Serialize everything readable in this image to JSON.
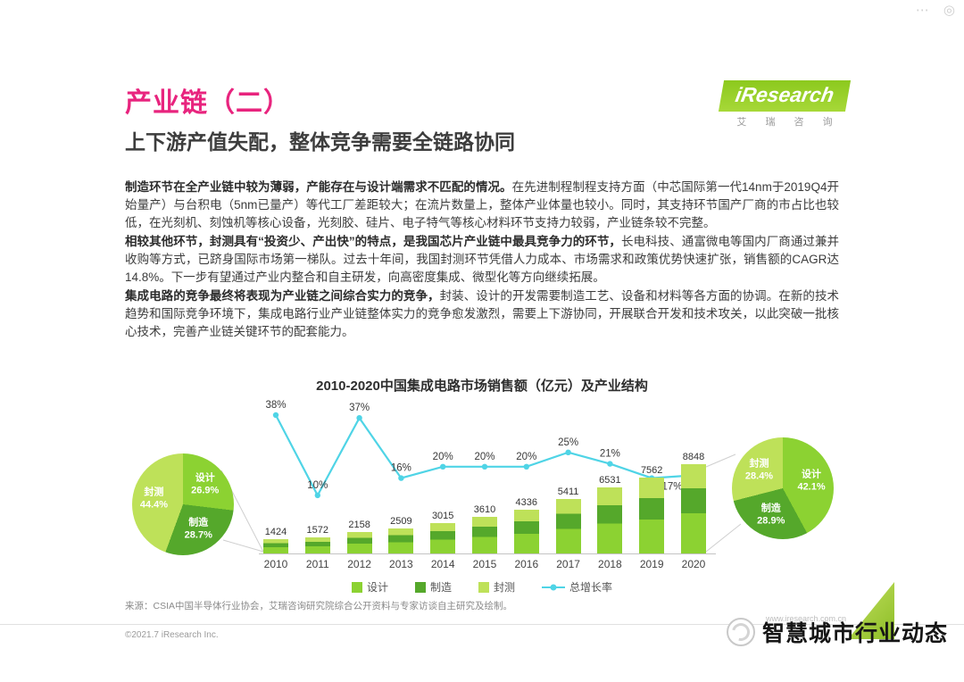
{
  "icons": {
    "more": "⋯",
    "float": "◎"
  },
  "header": {
    "section_title": "产业链（二）",
    "headline": "上下游产值失配，整体竞争需要全链路协同",
    "logo_text": "iResearch",
    "logo_sub": "艾 瑞 咨 询"
  },
  "paragraphs": [
    {
      "lead": "制造环节在全产业链中较为薄弱，产能存在与设计端需求不匹配的情况。",
      "rest": "在先进制程制程支持方面（中芯国际第一代14nm于2019Q4开始量产）与台积电（5nm已量产）等代工厂差距较大；在流片数量上，整体产业体量也较小。同时，其支持环节国产厂商的市占比也较低，在光刻机、刻蚀机等核心设备，光刻胶、硅片、电子特气等核心材料环节支持力较弱，产业链条较不完整。"
    },
    {
      "lead": "相较其他环节，封测具有“投资少、产出快”的特点，是我国芯片产业链中最具竞争力的环节，",
      "rest": "长电科技、通富微电等国内厂商通过兼并收购等方式，已跻身国际市场第一梯队。过去十年间，我国封测环节凭借人力成本、市场需求和政策优势快速扩张，销售额的CAGR达14.8%。下一步有望通过产业内整合和自主研发，向高密度集成、微型化等方向继续拓展。"
    },
    {
      "lead": "集成电路的竞争最终将表现为产业链之间综合实力的竞争，",
      "rest": "封装、设计的开发需要制造工艺、设备和材料等各方面的协调。在新的技术趋势和国际竞争环境下，集成电路行业产业链整体实力的竞争愈发激烈，需要上下游协同，开展联合开发和技术攻关，以此突破一批核心技术，完善产业链关键环节的配套能力。"
    }
  ],
  "chart_data": {
    "type": "bar+line",
    "title": "2010-2020中国集成电路市场销售额（亿元）及产业结构",
    "categories": [
      "2010",
      "2011",
      "2012",
      "2013",
      "2014",
      "2015",
      "2016",
      "2017",
      "2018",
      "2019",
      "2020"
    ],
    "series": [
      {
        "name": "中国集成电路市场销售额（亿元）",
        "type": "bar",
        "values": [
          1424,
          1572,
          2158,
          2509,
          3015,
          3610,
          4336,
          5411,
          6531,
          7562,
          8848
        ]
      },
      {
        "name": "总增长率",
        "type": "line",
        "values_pct": [
          38,
          10,
          37,
          16,
          20,
          20,
          20,
          25,
          21,
          16,
          17
        ]
      }
    ],
    "stack_legend": [
      {
        "key": "design",
        "label": "设计",
        "color": "#8cd232"
      },
      {
        "key": "manufacture",
        "label": "制造",
        "color": "#55a82b"
      },
      {
        "key": "package",
        "label": "封测",
        "color": "#bee159"
      },
      {
        "key": "growth",
        "label": "总增长率",
        "color": "#4fd4e6",
        "type": "line"
      }
    ],
    "pies": [
      {
        "id": "left",
        "slices": [
          {
            "label": "设计",
            "value": 26.9
          },
          {
            "label": "制造",
            "value": 28.7
          },
          {
            "label": "封测",
            "value": 44.4
          }
        ]
      },
      {
        "id": "right",
        "slices": [
          {
            "label": "设计",
            "value": 42.1
          },
          {
            "label": "制造",
            "value": 28.9
          },
          {
            "label": "封测",
            "value": 28.4
          }
        ]
      }
    ],
    "label_color": "#3a3a3a",
    "grid": false,
    "legend_position": "bottom"
  },
  "source": "来源：CSIA中国半导体行业协会，艾瑞咨询研究院综合公开资料与专家访谈自主研究及绘制。",
  "footer": {
    "copyright": "©2021.7 iResearch Inc.",
    "url": "www.iresearch.com.cn"
  },
  "watermark": {
    "text": "智慧城市行业动态"
  }
}
